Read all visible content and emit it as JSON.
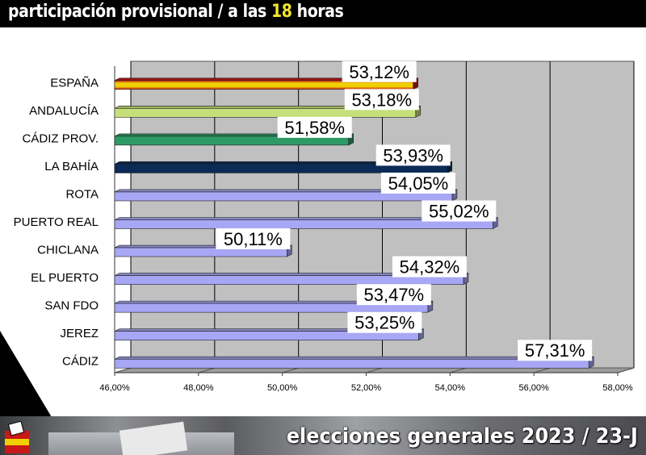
{
  "header": {
    "title_before": "participación provisional / a las ",
    "title_highlight": "18",
    "title_after": " horas"
  },
  "footer": {
    "text": "elecciones generales 2023 / 23-J"
  },
  "colors": {
    "espana_top": "#c81818",
    "espana_mid": "#f0d000",
    "andalucia": "#c6df7a",
    "cadiz_prov": "#2e9a66",
    "la_bahia": "#0b2a55",
    "municipal": "#a7a7f5",
    "plot_bg": "#c0c0c0",
    "grid": "#000000"
  },
  "chart_data": {
    "type": "bar",
    "orientation": "horizontal",
    "categories": [
      "ESPAÑA",
      "ANDALUCÍA",
      "CÁDIZ PROV.",
      "LA BAHÍA",
      "ROTA",
      "PUERTO REAL",
      "CHICLANA",
      "EL PUERTO",
      "SAN FDO",
      "JEREZ",
      "CÁDIZ"
    ],
    "values": [
      53.12,
      53.18,
      51.58,
      53.93,
      54.05,
      55.02,
      50.11,
      54.32,
      53.47,
      53.25,
      57.31
    ],
    "value_labels": [
      "53,12%",
      "53,18%",
      "51,58%",
      "53,93%",
      "54,05%",
      "55,02%",
      "50,11%",
      "54,32%",
      "53,47%",
      "53,25%",
      "57,31%"
    ],
    "xlim": [
      46,
      58
    ],
    "xticks": [
      46,
      48,
      50,
      52,
      54,
      56,
      58
    ],
    "xtick_labels": [
      "46,00%",
      "48,00%",
      "50,00%",
      "52,00%",
      "54,00%",
      "56,00%",
      "58,00%"
    ],
    "grid": true,
    "legend": "none"
  }
}
